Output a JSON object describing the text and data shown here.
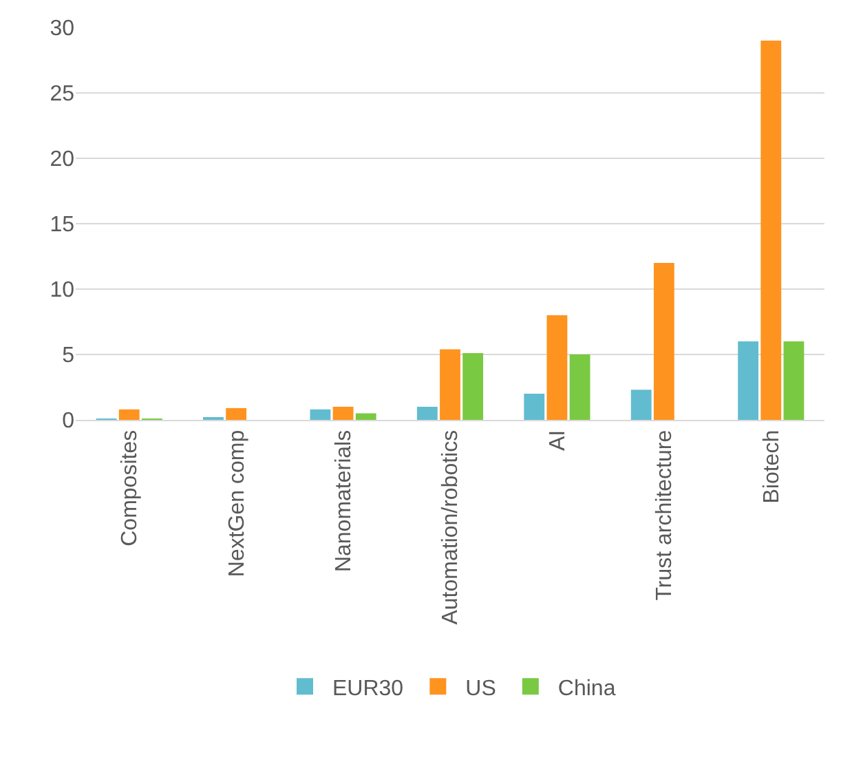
{
  "chart_data": {
    "type": "bar",
    "categories": [
      "Composites",
      "NextGen comp",
      "Nanomaterials",
      "Automation/robotics",
      "AI",
      "Trust architecture",
      "Biotech"
    ],
    "series": [
      {
        "name": "EUR30",
        "color": "#62bccf",
        "values": [
          0.1,
          0.2,
          0.8,
          1.0,
          2.0,
          2.3,
          6.0
        ]
      },
      {
        "name": "US",
        "color": "#ff931f",
        "values": [
          0.8,
          0.9,
          1.0,
          5.4,
          8.0,
          12.0,
          29.0
        ]
      },
      {
        "name": "China",
        "color": "#7ac943",
        "values": [
          0.1,
          null,
          0.5,
          5.1,
          5.0,
          null,
          6.0
        ]
      }
    ],
    "ylim": [
      0,
      30
    ],
    "yticks": [
      0,
      5,
      10,
      15,
      20,
      25,
      30
    ],
    "grid": "y",
    "legend": "bottom"
  }
}
